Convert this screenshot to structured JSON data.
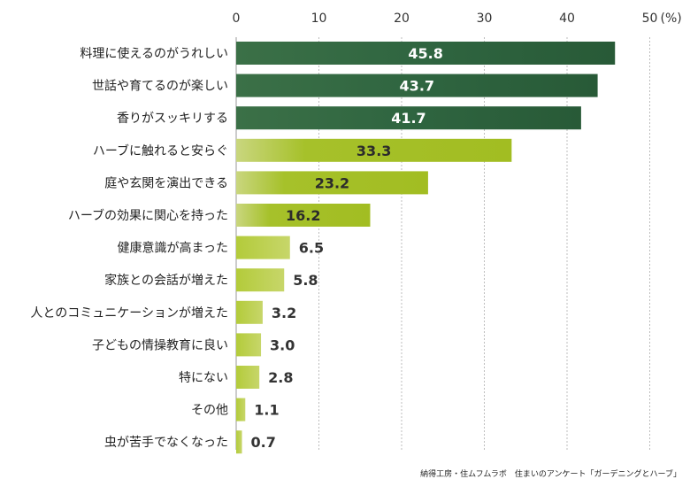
{
  "chart_data": {
    "type": "bar",
    "orientation": "horizontal",
    "categories": [
      "料理に使えるのがうれしい",
      "世話や育てるのが楽しい",
      "香りがスッキリする",
      "ハーブに触れると安らぐ",
      "庭や玄関を演出できる",
      "ハーブの効果に関心を持った",
      "健康意識が高まった",
      "家族との会話が増えた",
      "人とのコミュニケーションが増えた",
      "子どもの情操教育に良い",
      "特にない",
      "その他",
      "虫が苦手でなくなった"
    ],
    "values": [
      45.8,
      43.7,
      41.7,
      33.3,
      23.2,
      16.2,
      6.5,
      5.8,
      3.2,
      3.0,
      2.8,
      1.1,
      0.7
    ],
    "value_labels": [
      "45.8",
      "43.7",
      "41.7",
      "33.3",
      "23.2",
      "16.2",
      "6.5",
      "5.8",
      "3.2",
      "3.0",
      "2.8",
      "1.1",
      "0.7"
    ],
    "xlim": [
      0,
      50
    ],
    "ticks": [
      0,
      10,
      20,
      30,
      40,
      50
    ],
    "tick_labels": [
      "0",
      "10",
      "20",
      "30",
      "40",
      "50"
    ],
    "unit_label": "(%)",
    "grid": true,
    "colors": {
      "dark": "#2f6540",
      "mid": "#a6c12a",
      "light": "#c7d66a",
      "value_on_dark": "#ffffff",
      "value_on_mid": "#2b2b2b"
    },
    "source": "納得工房・住ムフムラボ　住まいのアンケート「ガーデニングとハーブ」"
  }
}
